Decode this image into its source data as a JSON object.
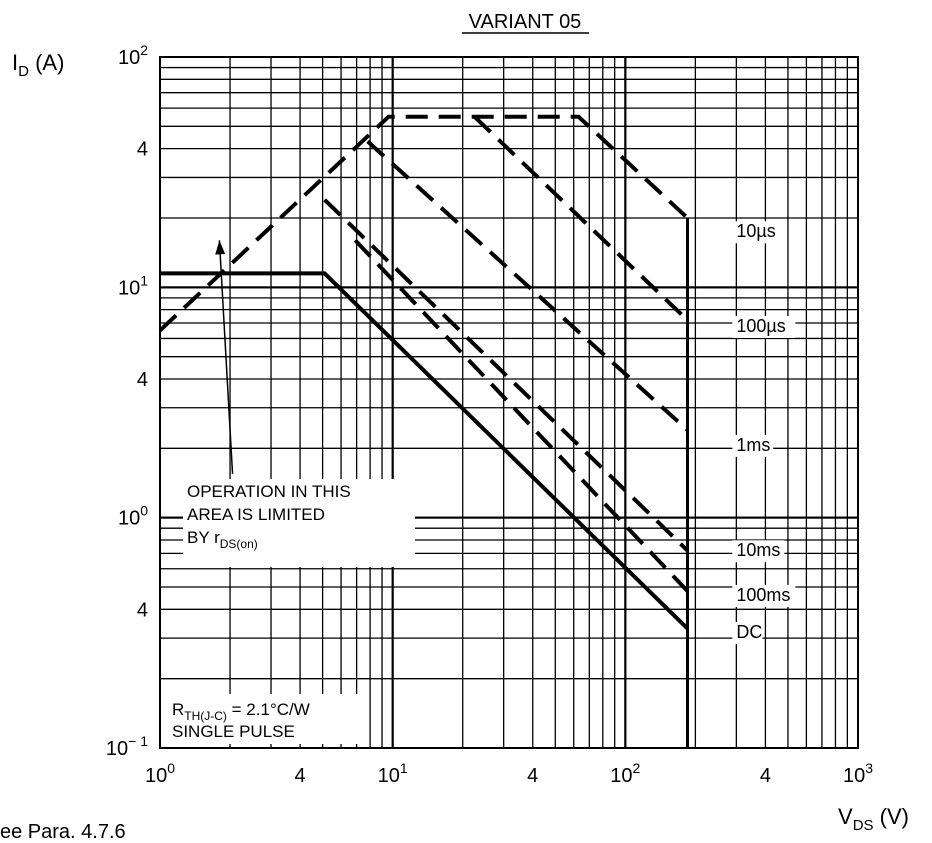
{
  "chart_data": {
    "type": "line",
    "title": "VARIANT 05",
    "x_scale": "log",
    "y_scale": "log",
    "xlim": [
      1,
      1000
    ],
    "ylim": [
      0.1,
      100
    ],
    "grid": true,
    "xlabel": {
      "main": "V",
      "sub": "DS",
      "unit": " (V)"
    },
    "ylabel": {
      "main": "I",
      "sub": "D",
      "unit": " (A)"
    },
    "x_ticks": [
      {
        "value": 1,
        "base": "10",
        "exp": "0"
      },
      {
        "value": 4,
        "base": "4",
        "exp": ""
      },
      {
        "value": 10,
        "base": "10",
        "exp": "1"
      },
      {
        "value": 40,
        "base": "4",
        "exp": ""
      },
      {
        "value": 100,
        "base": "10",
        "exp": "2"
      },
      {
        "value": 400,
        "base": "4",
        "exp": ""
      },
      {
        "value": 1000,
        "base": "10",
        "exp": "3"
      }
    ],
    "y_ticks": [
      {
        "value": 100,
        "base": "10",
        "exp": "2"
      },
      {
        "value": 40,
        "base": "4",
        "exp": ""
      },
      {
        "value": 10,
        "base": "10",
        "exp": "1"
      },
      {
        "value": 4,
        "base": "4",
        "exp": ""
      },
      {
        "value": 1,
        "base": "10",
        "exp": "0"
      },
      {
        "value": 0.4,
        "base": "4",
        "exp": ""
      },
      {
        "value": 0.1,
        "base": "10",
        "exp": "− 1"
      }
    ],
    "series": [
      {
        "name": "10µs",
        "style": "dashed",
        "points": [
          [
            1,
            6.5
          ],
          [
            9.6,
            55
          ],
          [
            63,
            55
          ],
          [
            185,
            20
          ]
        ]
      },
      {
        "name": "100µs",
        "style": "dashed",
        "points": [
          [
            22.5,
            55
          ],
          [
            185,
            7.2
          ]
        ]
      },
      {
        "name": "1ms",
        "style": "dashed",
        "points": [
          [
            7.8,
            43
          ],
          [
            185,
            2.4
          ]
        ]
      },
      {
        "name": "10ms",
        "style": "dashed",
        "points": [
          [
            5.1,
            24
          ],
          [
            185,
            0.72
          ]
        ]
      },
      {
        "name": "100ms",
        "style": "dashed",
        "points": [
          [
            6.9,
            16
          ],
          [
            185,
            0.48
          ]
        ]
      },
      {
        "name": "DC",
        "style": "solid",
        "points": [
          [
            1,
            11.5
          ],
          [
            5.1,
            11.5
          ],
          [
            185,
            0.33
          ]
        ]
      }
    ],
    "voltage_limit": {
      "x": 185,
      "y_from": 0.1,
      "y_to": 20
    },
    "curve_labels": [
      {
        "text": "10µs",
        "x": 300,
        "y": 16.5
      },
      {
        "text": "100µs",
        "x": 300,
        "y": 6.4
      },
      {
        "text": "1ms",
        "x": 300,
        "y": 1.95
      },
      {
        "text": "10ms",
        "x": 300,
        "y": 0.68
      },
      {
        "text": "100ms",
        "x": 300,
        "y": 0.435
      },
      {
        "text": "DC",
        "x": 300,
        "y": 0.3
      }
    ],
    "annotations": {
      "limited_area": [
        "OPERATION IN THIS",
        "AREA IS LIMITED",
        "BY r"
      ],
      "limited_sub": "DS(on)",
      "limited_arrow_to": [
        1.8,
        16
      ],
      "limited_arrow_from": [
        2.05,
        1.55
      ],
      "rth_main": "R",
      "rth_sub": "TH(J-C)",
      "rth_value": " = 2.1°C/W",
      "pulse": "SINGLE PULSE"
    }
  },
  "footnote": "ee Para. 4.7.6"
}
